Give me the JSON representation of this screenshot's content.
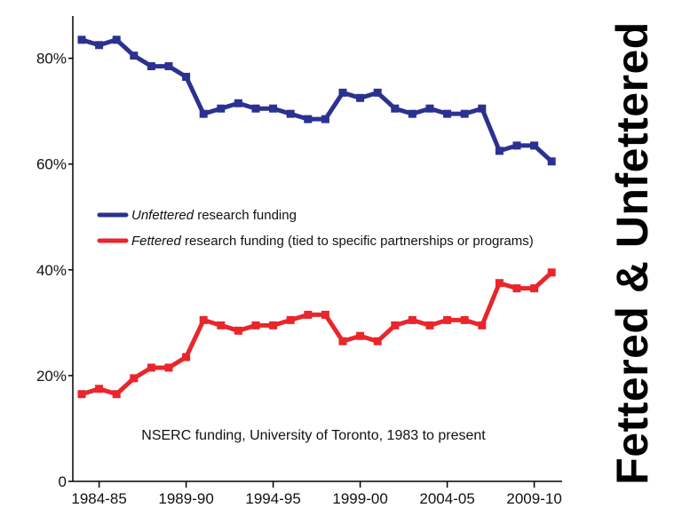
{
  "side_title": "Fettered & Unfettered",
  "chart_data": {
    "type": "line",
    "title": "NSERC funding, University of Toronto, 1983 to present",
    "xlabel": "",
    "ylabel": "",
    "ylim": [
      0,
      88
    ],
    "yticks": [
      {
        "value": 0,
        "label": "0"
      },
      {
        "value": 20,
        "label": "20%"
      },
      {
        "value": 40,
        "label": "40%"
      },
      {
        "value": 60,
        "label": "60%"
      },
      {
        "value": 80,
        "label": "80%"
      }
    ],
    "x_tick_labels": [
      {
        "index": 1,
        "label": "1984-85"
      },
      {
        "index": 6,
        "label": "1989-90"
      },
      {
        "index": 11,
        "label": "1994-95"
      },
      {
        "index": 16,
        "label": "1999-00"
      },
      {
        "index": 21,
        "label": "2004-05"
      },
      {
        "index": 26,
        "label": "2009-10"
      }
    ],
    "x": [
      "1983-84",
      "1984-85",
      "1985-86",
      "1986-87",
      "1987-88",
      "1988-89",
      "1989-90",
      "1990-91",
      "1991-92",
      "1992-93",
      "1993-94",
      "1994-95",
      "1995-96",
      "1996-97",
      "1997-98",
      "1998-99",
      "1999-00",
      "2000-01",
      "2001-02",
      "2002-03",
      "2003-04",
      "2004-05",
      "2005-06",
      "2006-07",
      "2007-08",
      "2008-09",
      "2009-10",
      "2010-11"
    ],
    "series": [
      {
        "name": "Unfettered research funding",
        "legend_italic": "Unfettered",
        "legend_rest": " research funding",
        "color": "#2b3190",
        "values": [
          83.5,
          82.5,
          83.5,
          80.5,
          78.5,
          78.5,
          76.5,
          69.5,
          70.5,
          71.5,
          70.5,
          70.5,
          69.5,
          68.5,
          68.5,
          73.5,
          72.5,
          73.5,
          70.5,
          69.5,
          70.5,
          69.5,
          69.5,
          70.5,
          62.5,
          63.5,
          63.5,
          60.5
        ]
      },
      {
        "name": "Fettered research funding (tied to specific partnerships or programs)",
        "legend_italic": "Fettered",
        "legend_rest": " research funding (tied to specific partnerships or programs)",
        "color": "#e8262c",
        "values": [
          16.5,
          17.5,
          16.5,
          19.5,
          21.5,
          21.5,
          23.5,
          30.5,
          29.5,
          28.5,
          29.5,
          29.5,
          30.5,
          31.5,
          31.5,
          26.5,
          27.5,
          26.5,
          29.5,
          30.5,
          29.5,
          30.5,
          30.5,
          29.5,
          37.5,
          36.5,
          36.5,
          39.5
        ]
      }
    ],
    "annotation": "NSERC funding, University of Toronto, 1983 to present",
    "legend_position": "middle-left"
  }
}
